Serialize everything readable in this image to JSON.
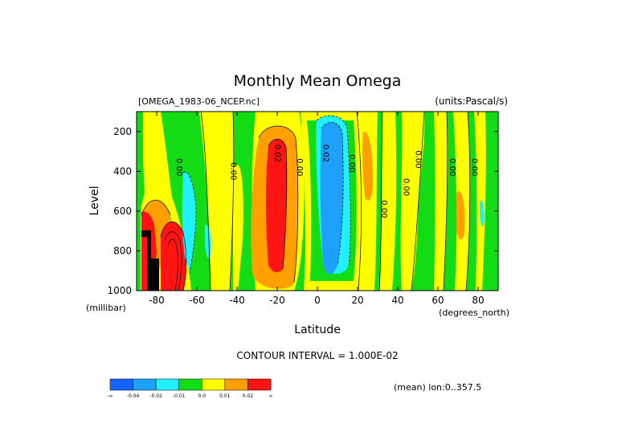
{
  "chart_data": {
    "type": "heatmap",
    "title": "Monthly Mean Omega",
    "file_label": "[OMEGA_1983-06_NCEP.nc]",
    "units_label": "(units:Pascal/s)",
    "xlabel": "Latitude",
    "xunits": "(degrees_north)",
    "ylabel": "Level",
    "yunits": "(millibar)",
    "xlim": [
      -90,
      90
    ],
    "ylim": [
      1000,
      100
    ],
    "x_ticks": [
      -80,
      -60,
      -40,
      -20,
      0,
      20,
      40,
      60,
      80
    ],
    "x_tick_labels": [
      "-80",
      "-60",
      "-40",
      "-20",
      "0",
      "20",
      "40",
      "60",
      "80"
    ],
    "y_ticks": [
      200,
      400,
      600,
      800,
      1000
    ],
    "y_tick_labels": [
      "200",
      "400",
      "600",
      "800",
      "1000"
    ],
    "contour_interval_text": "CONTOUR INTERVAL = 1.000E-02",
    "mean_text": "(mean) lon:0..357.5",
    "colorbar": {
      "colors": [
        "#1464ff",
        "#1ea0ff",
        "#20f0ff",
        "#14dc14",
        "#ffff00",
        "#ffa000",
        "#ff1414"
      ],
      "labels": [
        "-∞",
        "-0.04",
        "-0.02",
        "-0.01",
        "0.0",
        "0.01",
        "0.02",
        "∞"
      ]
    },
    "missing_color": "#000000",
    "contour_labels": [
      {
        "text": "0.00",
        "lat": -70,
        "level": 380
      },
      {
        "text": "0.00",
        "lat": -43,
        "level": 400
      },
      {
        "text": "0.02",
        "lat": -21,
        "level": 310
      },
      {
        "text": "0.00",
        "lat": -10,
        "level": 380
      },
      {
        "text": "0.02",
        "lat": 3,
        "level": 310
      },
      {
        "text": "0.00",
        "lat": 16,
        "level": 360
      },
      {
        "text": "0.00",
        "lat": 32,
        "level": 590
      },
      {
        "text": "0.00",
        "lat": 43,
        "level": 480
      },
      {
        "text": "0.00",
        "lat": 49,
        "level": 340
      },
      {
        "text": "0.00",
        "lat": 66,
        "level": 380
      },
      {
        "text": "0.00",
        "lat": 77,
        "level": 380
      }
    ],
    "field_description_bands": [
      {
        "lat": [
          -90,
          -85
        ],
        "level": [
          100,
          600
        ],
        "value": "green"
      },
      {
        "lat": [
          -85,
          -76
        ],
        "level": [
          100,
          1000
        ],
        "value": "yellow"
      },
      {
        "lat": [
          -76,
          -65
        ],
        "level": [
          100,
          1000
        ],
        "value": "green"
      },
      {
        "lat": [
          -65,
          -57
        ],
        "level": [
          100,
          1000
        ],
        "value": "yellow"
      },
      {
        "lat": [
          -57,
          -35
        ],
        "level": [
          100,
          1000
        ],
        "value": "green"
      },
      {
        "lat": [
          -35,
          -7
        ],
        "level": [
          180,
          1000
        ],
        "value": "orange-red"
      },
      {
        "lat": [
          -7,
          20
        ],
        "level": [
          100,
          1000
        ],
        "value": "blue"
      },
      {
        "lat": [
          20,
          90
        ],
        "level": [
          100,
          1000
        ],
        "value": "alternating"
      }
    ]
  }
}
